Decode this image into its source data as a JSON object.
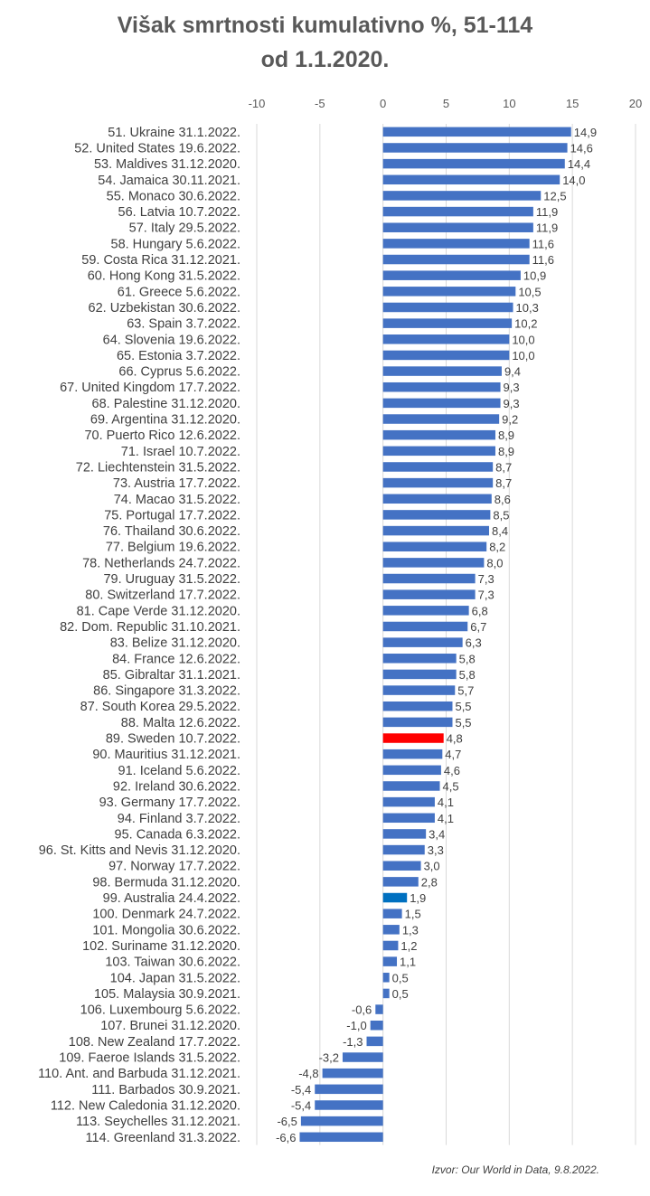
{
  "chart_data": {
    "type": "bar",
    "orientation": "horizontal",
    "title_line1": "Višak smrtnosti kumulativno %, 51-114",
    "title_line2": "od 1.1.2020.",
    "xlim": [
      -10,
      20
    ],
    "x_ticks": [
      "-10",
      "-5",
      "0",
      "5",
      "10",
      "15",
      "20"
    ],
    "tick_values": [
      -10,
      -5,
      0,
      5,
      10,
      15,
      20
    ],
    "grid": true,
    "colors": {
      "default": "#4472C4",
      "sweden": "#FF0000",
      "australia": "#0070C0",
      "grid": "#D9D9D9"
    },
    "categories": [
      "51. Ukraine 31.1.2022.",
      "52. United States 19.6.2022.",
      "53. Maldives 31.12.2020.",
      "54. Jamaica 30.11.2021.",
      "55. Monaco 30.6.2022.",
      "56. Latvia 10.7.2022.",
      "57. Italy 29.5.2022.",
      "58. Hungary 5.6.2022.",
      "59. Costa Rica 31.12.2021.",
      "60. Hong Kong 31.5.2022.",
      "61. Greece 5.6.2022.",
      "62. Uzbekistan 30.6.2022.",
      "63. Spain 3.7.2022.",
      "64. Slovenia 19.6.2022.",
      "65. Estonia 3.7.2022.",
      "66. Cyprus 5.6.2022.",
      "67. United Kingdom 17.7.2022.",
      "68. Palestine 31.12.2020.",
      "69. Argentina 31.12.2020.",
      "70. Puerto Rico 12.6.2022.",
      "71. Israel 10.7.2022.",
      "72. Liechtenstein 31.5.2022.",
      "73. Austria 17.7.2022.",
      "74. Macao 31.5.2022.",
      "75. Portugal 17.7.2022.",
      "76. Thailand 30.6.2022.",
      "77. Belgium 19.6.2022.",
      "78. Netherlands 24.7.2022.",
      "79. Uruguay 31.5.2022.",
      "80. Switzerland 17.7.2022.",
      "81. Cape Verde 31.12.2020.",
      "82. Dom. Republic 31.10.2021.",
      "83. Belize 31.12.2020.",
      "84. France 12.6.2022.",
      "85. Gibraltar 31.1.2021.",
      "86. Singapore 31.3.2022.",
      "87. South Korea 29.5.2022.",
      "88. Malta 12.6.2022.",
      "89. Sweden 10.7.2022.",
      "90. Mauritius 31.12.2021.",
      "91. Iceland 5.6.2022.",
      "92. Ireland 30.6.2022.",
      "93. Germany 17.7.2022.",
      "94. Finland 3.7.2022.",
      "95. Canada 6.3.2022.",
      "96. St. Kitts and Nevis 31.12.2020.",
      "97. Norway 17.7.2022.",
      "98. Bermuda 31.12.2020.",
      "99. Australia 24.4.2022.",
      "100. Denmark 24.7.2022.",
      "101. Mongolia 30.6.2022.",
      "102. Suriname 31.12.2020.",
      "103. Taiwan 30.6.2022.",
      "104. Japan 31.5.2022.",
      "105. Malaysia 30.9.2021.",
      "106. Luxembourg 5.6.2022.",
      "107. Brunei 31.12.2020.",
      "108. New Zealand 17.7.2022.",
      "109. Faeroe Islands 31.5.2022.",
      "110. Ant. and Barbuda 31.12.2021.",
      "111. Barbados 30.9.2021.",
      "112. New Caledonia 31.12.2020.",
      "113. Seychelles 31.12.2021.",
      "114. Greenland 31.3.2022."
    ],
    "values": [
      14.9,
      14.6,
      14.4,
      14.0,
      12.5,
      11.9,
      11.9,
      11.6,
      11.6,
      10.9,
      10.5,
      10.3,
      10.2,
      10.0,
      10.0,
      9.4,
      9.3,
      9.3,
      9.2,
      8.9,
      8.9,
      8.7,
      8.7,
      8.6,
      8.5,
      8.4,
      8.2,
      8.0,
      7.3,
      7.3,
      6.8,
      6.7,
      6.3,
      5.8,
      5.8,
      5.7,
      5.5,
      5.5,
      4.8,
      4.7,
      4.6,
      4.5,
      4.1,
      4.1,
      3.4,
      3.3,
      3.0,
      2.8,
      1.9,
      1.5,
      1.3,
      1.2,
      1.1,
      0.5,
      0.5,
      -0.6,
      -1.0,
      -1.3,
      -3.2,
      -4.8,
      -5.4,
      -5.4,
      -6.5,
      -6.6
    ],
    "value_labels": [
      "14,9",
      "14,6",
      "14,4",
      "14,0",
      "12,5",
      "11,9",
      "11,9",
      "11,6",
      "11,6",
      "10,9",
      "10,5",
      "10,3",
      "10,2",
      "10,0",
      "10,0",
      "9,4",
      "9,3",
      "9,3",
      "9,2",
      "8,9",
      "8,9",
      "8,7",
      "8,7",
      "8,6",
      "8,5",
      "8,4",
      "8,2",
      "8,0",
      "7,3",
      "7,3",
      "6,8",
      "6,7",
      "6,3",
      "5,8",
      "5,8",
      "5,7",
      "5,5",
      "5,5",
      "4,8",
      "4,7",
      "4,6",
      "4,5",
      "4,1",
      "4,1",
      "3,4",
      "3,3",
      "3,0",
      "2,8",
      "1,9",
      "1,5",
      "1,3",
      "1,2",
      "1,1",
      "0,5",
      "0,5",
      "-0,6",
      "-1,0",
      "-1,3",
      "-3,2",
      "-4,8",
      "-5,4",
      "-5,4",
      "-6,5",
      "-6,6"
    ],
    "highlight": {
      "89. Sweden 10.7.2022.": "sweden",
      "99. Australia 24.4.2022.": "australia"
    }
  },
  "source": "Izvor: Our World in Data, 9.8.2022."
}
